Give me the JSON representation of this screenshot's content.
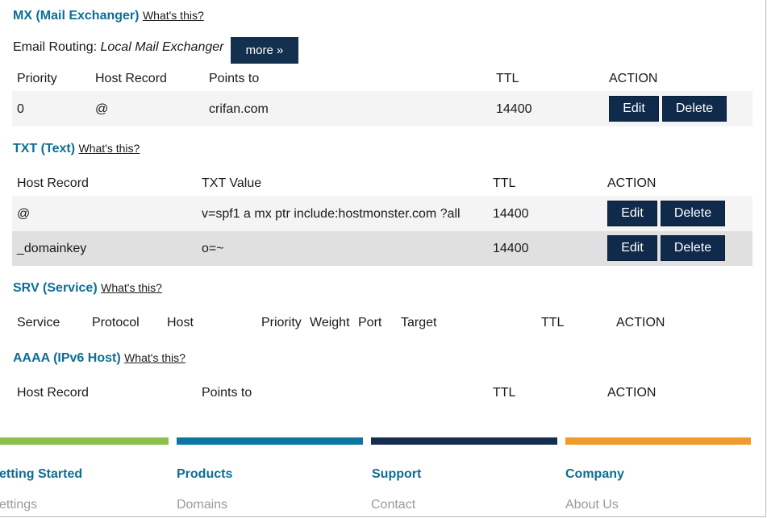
{
  "mx": {
    "title": "MX (Mail Exchanger)",
    "help": "What's this?",
    "routing_label": "Email Routing:",
    "routing_value": "Local Mail Exchanger",
    "more_label": "more »",
    "headers": {
      "priority": "Priority",
      "host": "Host Record",
      "points": "Points to",
      "ttl": "TTL",
      "action": "ACTION"
    },
    "rows": [
      {
        "priority": "0",
        "host": "@",
        "points": "crifan.com",
        "ttl": "14400",
        "edit": "Edit",
        "delete": "Delete"
      }
    ]
  },
  "txt": {
    "title": "TXT (Text)",
    "help": "What's this?",
    "headers": {
      "host": "Host Record",
      "value": "TXT Value",
      "ttl": "TTL",
      "action": "ACTION"
    },
    "rows": [
      {
        "host": "@",
        "value": "v=spf1 a mx ptr include:hostmonster.com ?all",
        "ttl": "14400",
        "edit": "Edit",
        "delete": "Delete"
      },
      {
        "host": "_domainkey",
        "value": "o=~",
        "ttl": "14400",
        "edit": "Edit",
        "delete": "Delete"
      }
    ]
  },
  "srv": {
    "title": "SRV (Service)",
    "help": "What's this?",
    "headers": {
      "service": "Service",
      "protocol": "Protocol",
      "host": "Host",
      "priority": "Priority",
      "weight": "Weight",
      "port": "Port",
      "target": "Target",
      "ttl": "TTL",
      "action": "ACTION"
    }
  },
  "aaaa": {
    "title": "AAAA (IPv6 Host)",
    "help": "What's this?",
    "headers": {
      "host": "Host Record",
      "points": "Points to",
      "ttl": "TTL",
      "action": "ACTION"
    }
  },
  "footer": {
    "columns": [
      {
        "heading": "etting Started",
        "link": "ettings",
        "color": "#8cc04b"
      },
      {
        "heading": "Products",
        "link": "Domains",
        "color": "#0c75a0"
      },
      {
        "heading": "Support",
        "link": "Contact",
        "color": "#142e4f"
      },
      {
        "heading": "Company",
        "link": "About Us",
        "color": "#ef9a2a"
      }
    ]
  }
}
